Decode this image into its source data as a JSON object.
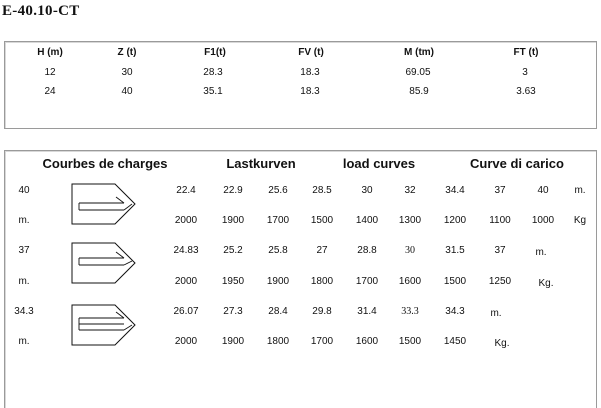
{
  "title": "E-40.10-CT",
  "specs": {
    "headers": [
      "H (m)",
      "Z (t)",
      "F1(t)",
      "FV (t)",
      "M (tm)",
      "FT (t)"
    ],
    "rows": [
      [
        "12",
        "30",
        "28.3",
        "18.3",
        "69.05",
        "3"
      ],
      [
        "24",
        "40",
        "35.1",
        "18.3",
        "85.9",
        "3.63"
      ]
    ]
  },
  "curves": {
    "headings": [
      "Courbes de charges",
      "Lastkurven",
      "load curves",
      "Curve di carico"
    ],
    "groups": [
      {
        "jib_length": "40",
        "jib_unit": "m.",
        "distances": [
          "22.4",
          "22.9",
          "25.6",
          "28.5",
          "30",
          "32",
          "34.4",
          "37",
          "40"
        ],
        "distance_unit": "m.",
        "loads": [
          "2000",
          "1900",
          "1700",
          "1500",
          "1400",
          "1300",
          "1200",
          "1100",
          "1000"
        ],
        "load_unit": "Kg"
      },
      {
        "jib_length": "37",
        "jib_unit": "m.",
        "distances": [
          "24.83",
          "25.2",
          "25.8",
          "27",
          "28.8",
          "30",
          "31.5",
          "37"
        ],
        "distance_unit": "m.",
        "loads": [
          "2000",
          "1950",
          "1900",
          "1800",
          "1700",
          "1600",
          "1500",
          "1250"
        ],
        "load_unit": "Kg."
      },
      {
        "jib_length": "34.3",
        "jib_unit": "m.",
        "distances": [
          "26.07",
          "27.3",
          "28.4",
          "29.8",
          "31.4",
          "33.3",
          "34.3"
        ],
        "distance_unit": "m.",
        "loads": [
          "2000",
          "1900",
          "1800",
          "1700",
          "1600",
          "1500",
          "1450"
        ],
        "load_unit": "Kg."
      }
    ]
  }
}
